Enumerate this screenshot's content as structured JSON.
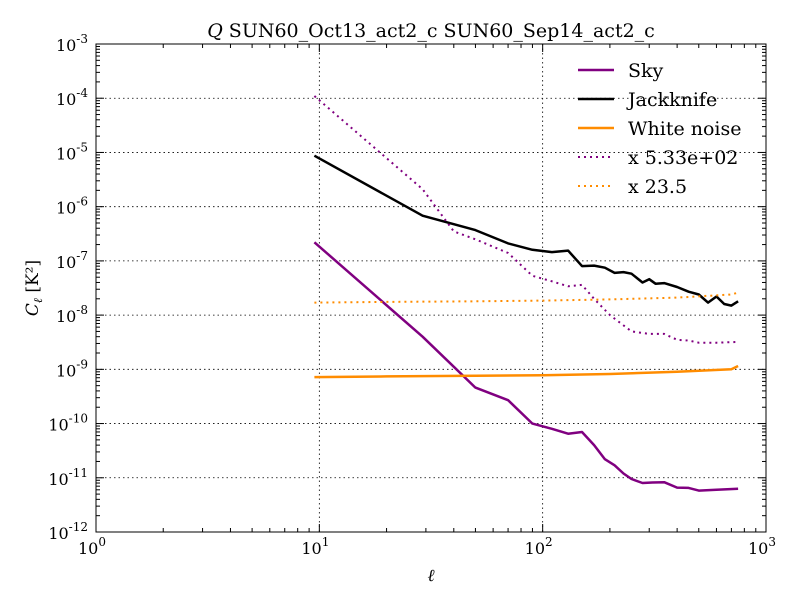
{
  "chart_data": {
    "type": "line",
    "title": "Q SUN60_Oct13_act2_c SUN60_Sep14_act2_c",
    "title_prefix": "Q",
    "title_rest": " SUN60_Oct13_act2_c SUN60_Sep14_act2_c",
    "xlabel": "ℓ",
    "ylabel_main": "C",
    "ylabel_sub": "ℓ",
    "ylabel_unit": " [K²]",
    "x_scale": "log",
    "y_scale": "log",
    "xlim": [
      1,
      1000
    ],
    "ylim": [
      1e-12,
      0.001
    ],
    "grid": true,
    "legend_position": "top-right",
    "x_ticks": [
      {
        "value": 1,
        "base": "10",
        "exp": "0"
      },
      {
        "value": 10,
        "base": "10",
        "exp": "1"
      },
      {
        "value": 100,
        "base": "10",
        "exp": "2"
      },
      {
        "value": 1000,
        "base": "10",
        "exp": "3"
      }
    ],
    "y_ticks": [
      {
        "value": 1e-12,
        "base": "10",
        "exp": "-12"
      },
      {
        "value": 1e-11,
        "base": "10",
        "exp": "-11"
      },
      {
        "value": 1e-10,
        "base": "10",
        "exp": "-10"
      },
      {
        "value": 1e-09,
        "base": "10",
        "exp": "-9"
      },
      {
        "value": 1e-08,
        "base": "10",
        "exp": "-8"
      },
      {
        "value": 1e-07,
        "base": "10",
        "exp": "-7"
      },
      {
        "value": 1e-06,
        "base": "10",
        "exp": "-6"
      },
      {
        "value": 1e-05,
        "base": "10",
        "exp": "-5"
      },
      {
        "value": 0.0001,
        "base": "10",
        "exp": "-4"
      },
      {
        "value": 0.001,
        "base": "10",
        "exp": "-3"
      }
    ],
    "series": [
      {
        "name": "Sky",
        "color": "#800080",
        "style": "solid",
        "x": [
          9.5,
          29,
          50,
          70,
          90,
          110,
          130,
          150,
          170,
          190,
          210,
          230,
          250,
          280,
          310,
          350,
          400,
          450,
          500,
          600,
          750
        ],
        "y": [
          2.2e-07,
          4e-09,
          4.6e-10,
          2.7e-10,
          1e-10,
          8e-11,
          6.5e-11,
          7e-11,
          4e-11,
          2.2e-11,
          1.7e-11,
          1.2e-11,
          9.5e-12,
          8e-12,
          8.2e-12,
          8.3e-12,
          6.6e-12,
          6.5e-12,
          5.8e-12,
          6e-12,
          6.3e-12
        ]
      },
      {
        "name": "Jackknife",
        "color": "#000000",
        "style": "solid",
        "x": [
          9.5,
          29,
          50,
          70,
          90,
          110,
          130,
          150,
          170,
          190,
          210,
          230,
          250,
          280,
          300,
          320,
          350,
          400,
          450,
          500,
          550,
          600,
          650,
          700,
          750
        ],
        "y": [
          8.7e-06,
          6.8e-07,
          3.7e-07,
          2.1e-07,
          1.6e-07,
          1.45e-07,
          1.55e-07,
          8e-08,
          8.2e-08,
          7.5e-08,
          6e-08,
          6.2e-08,
          5.8e-08,
          4e-08,
          4.6e-08,
          3.8e-08,
          3.9e-08,
          3.3e-08,
          2.7e-08,
          2.4e-08,
          1.7e-08,
          2.2e-08,
          1.6e-08,
          1.5e-08,
          1.8e-08
        ]
      },
      {
        "name": "White noise",
        "color": "#ff8c00",
        "style": "solid",
        "x": [
          9.5,
          20,
          50,
          100,
          200,
          400,
          700,
          750
        ],
        "y": [
          7.2e-10,
          7.4e-10,
          7.6e-10,
          7.8e-10,
          8.2e-10,
          9e-10,
          1e-09,
          1.15e-09
        ]
      },
      {
        "name": "x 5.33e+02",
        "color": "#800080",
        "style": "dotted",
        "x": [
          9.5,
          29,
          40,
          50,
          70,
          90,
          110,
          130,
          150,
          170,
          200,
          250,
          300,
          350,
          400,
          450,
          500,
          600,
          750
        ],
        "y": [
          0.00011,
          2.1e-06,
          3.5e-07,
          2.5e-07,
          1.4e-07,
          5.3e-08,
          4.2e-08,
          3.4e-08,
          3.6e-08,
          2e-08,
          1e-08,
          5e-09,
          4.5e-09,
          4.5e-09,
          3.5e-09,
          3.4e-09,
          3.1e-09,
          3.1e-09,
          3.2e-09
        ]
      },
      {
        "name": "x 23.5",
        "color": "#ff8c00",
        "style": "dotted",
        "x": [
          9.5,
          20,
          50,
          100,
          200,
          400,
          700,
          750
        ],
        "y": [
          1.7e-08,
          1.75e-08,
          1.8e-08,
          1.85e-08,
          1.95e-08,
          2.1e-08,
          2.4e-08,
          2.6e-08
        ]
      }
    ]
  }
}
